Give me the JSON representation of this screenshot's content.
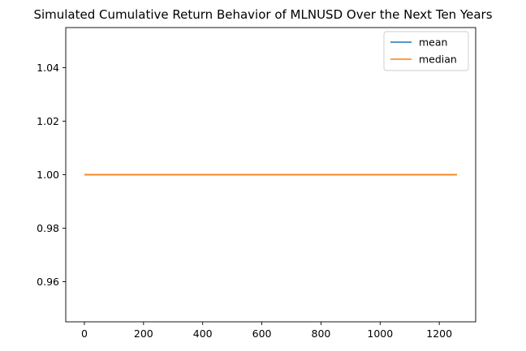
{
  "chart_data": {
    "type": "line",
    "title": "Simulated Cumulative Return Behavior of MLNUSD Over the Next Ten Years",
    "xlabel": "",
    "ylabel": "",
    "xlim": [
      -63,
      1323
    ],
    "ylim": [
      0.945,
      1.055
    ],
    "x_ticks": [
      0,
      200,
      400,
      600,
      800,
      1000,
      1200
    ],
    "x_tick_labels": [
      "0",
      "200",
      "400",
      "600",
      "800",
      "1000",
      "1200"
    ],
    "y_ticks": [
      0.96,
      0.98,
      1.0,
      1.02,
      1.04
    ],
    "y_tick_labels": [
      "0.96",
      "0.98",
      "1.00",
      "1.02",
      "1.04"
    ],
    "grid": false,
    "legend_position": "top-right",
    "series": [
      {
        "name": "mean",
        "color": "#1f77b4",
        "x": [
          0,
          1260
        ],
        "y": [
          1.0,
          1.0
        ]
      },
      {
        "name": "median",
        "color": "#ff7f0e",
        "x": [
          0,
          1260
        ],
        "y": [
          1.0,
          1.0
        ]
      }
    ]
  }
}
